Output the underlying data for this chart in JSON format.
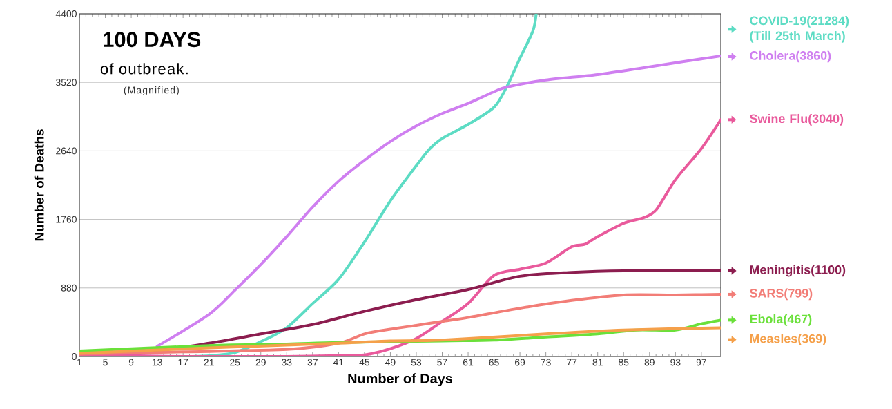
{
  "chart_data": {
    "type": "line",
    "title": "100 DAYS",
    "subtitle": "of outbreak.",
    "annotations": [
      "(Magnified)"
    ],
    "xlabel": "Number of Days",
    "ylabel": "Number of Deaths",
    "xlim": [
      1,
      100
    ],
    "ylim": [
      0,
      4400
    ],
    "xticks": [
      1,
      5,
      9,
      13,
      17,
      21,
      25,
      29,
      33,
      37,
      41,
      45,
      49,
      53,
      57,
      61,
      65,
      69,
      73,
      77,
      81,
      85,
      89,
      93,
      97
    ],
    "yticks": [
      0,
      880,
      1760,
      2640,
      3520,
      4400
    ],
    "grid": "y",
    "legend": "right",
    "marker": "none",
    "line_style": "solid",
    "series": [
      {
        "name": "COVID-19(21284) (Till 25th March)",
        "color": "#5ddcc4",
        "x": [
          17,
          21,
          25,
          29,
          33,
          37,
          41,
          45,
          49,
          53,
          55,
          57,
          61,
          65,
          67,
          69,
          71,
          71.5
        ],
        "values": [
          0,
          10,
          50,
          190,
          370,
          680,
          990,
          1470,
          2000,
          2450,
          2660,
          2800,
          2980,
          3200,
          3470,
          3830,
          4180,
          4400
        ]
      },
      {
        "name": "Cholera(3860)",
        "color": "#cf7ff0",
        "x": [
          13,
          21,
          25,
          29,
          33,
          37,
          41,
          45,
          49,
          53,
          57,
          61,
          65,
          67,
          73,
          81,
          89,
          100
        ],
        "values": [
          130,
          540,
          850,
          1180,
          1540,
          1920,
          2250,
          2520,
          2760,
          2960,
          3120,
          3250,
          3400,
          3460,
          3550,
          3620,
          3720,
          3860
        ]
      },
      {
        "name": "Swine Flu(3040)",
        "color": "#e95a9c",
        "x": [
          1,
          9,
          17,
          25,
          33,
          41,
          45,
          49,
          53,
          57,
          61,
          65,
          69,
          73,
          77,
          79,
          81,
          85,
          88,
          90,
          93,
          97,
          100
        ],
        "values": [
          20,
          10,
          0,
          0,
          0,
          10,
          20,
          100,
          230,
          450,
          680,
          1040,
          1120,
          1200,
          1410,
          1440,
          1540,
          1710,
          1780,
          1880,
          2270,
          2670,
          3040
        ]
      },
      {
        "name": "Meningitis(1100)",
        "color": "#8c1d4f",
        "x": [
          1,
          13,
          21,
          29,
          37,
          45,
          53,
          61,
          69,
          77,
          85,
          100
        ],
        "values": [
          40,
          80,
          170,
          290,
          410,
          580,
          730,
          860,
          1030,
          1080,
          1100,
          1100
        ]
      },
      {
        "name": "SARS(799)",
        "color": "#f27d77",
        "x": [
          1,
          17,
          33,
          41,
          45,
          49,
          53,
          57,
          61,
          69,
          77,
          85,
          93,
          100
        ],
        "values": [
          30,
          60,
          90,
          170,
          290,
          350,
          400,
          450,
          500,
          620,
          720,
          790,
          790,
          799
        ]
      },
      {
        "name": "Ebola(467)",
        "color": "#6ae03a",
        "x": [
          1,
          21,
          33,
          41,
          57,
          65,
          73,
          81,
          87,
          93,
          97,
          100
        ],
        "values": [
          70,
          140,
          160,
          180,
          200,
          210,
          250,
          290,
          340,
          340,
          420,
          467
        ]
      },
      {
        "name": "Measles(369)",
        "color": "#f5a04a",
        "x": [
          1,
          21,
          41,
          49,
          57,
          73,
          85,
          100
        ],
        "values": [
          40,
          110,
          170,
          200,
          210,
          290,
          340,
          369
        ]
      }
    ]
  }
}
